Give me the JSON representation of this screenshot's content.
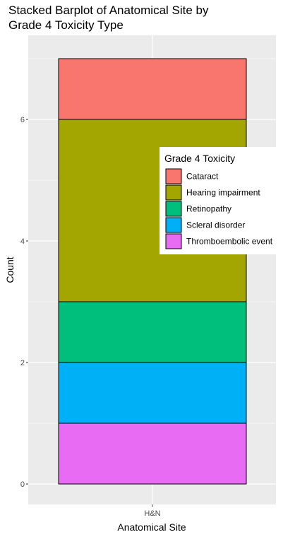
{
  "chart_data": {
    "type": "bar",
    "stacked": true,
    "title_lines": [
      "Stacked Barplot of Anatomical Site by",
      "Grade 4 Toxicity Type"
    ],
    "xlabel": "Anatomical Site",
    "ylabel": "Count",
    "categories": [
      "H&N"
    ],
    "ylim": [
      0,
      7
    ],
    "yticks": [
      0,
      2,
      4,
      6
    ],
    "yticks_labels": [
      "0",
      "2",
      "4",
      "6"
    ],
    "grid": true,
    "legend": {
      "title": "Grade 4 Toxicity",
      "placement": "right"
    },
    "series": [
      {
        "name": "Thromboembolic event",
        "values": [
          1
        ],
        "color": "#E76BF3"
      },
      {
        "name": "Scleral disorder",
        "values": [
          1
        ],
        "color": "#00B0F6"
      },
      {
        "name": "Retinopathy",
        "values": [
          1
        ],
        "color": "#00BF7D"
      },
      {
        "name": "Hearing impairment",
        "values": [
          3
        ],
        "color": "#A3A500"
      },
      {
        "name": "Cataract",
        "values": [
          1
        ],
        "color": "#F8766D"
      }
    ],
    "legend_order": [
      "Cataract",
      "Hearing impairment",
      "Retinopathy",
      "Scleral disorder",
      "Thromboembolic event"
    ],
    "panel_background": "#EBEBEB",
    "grid_color": "#FFFFFF"
  }
}
